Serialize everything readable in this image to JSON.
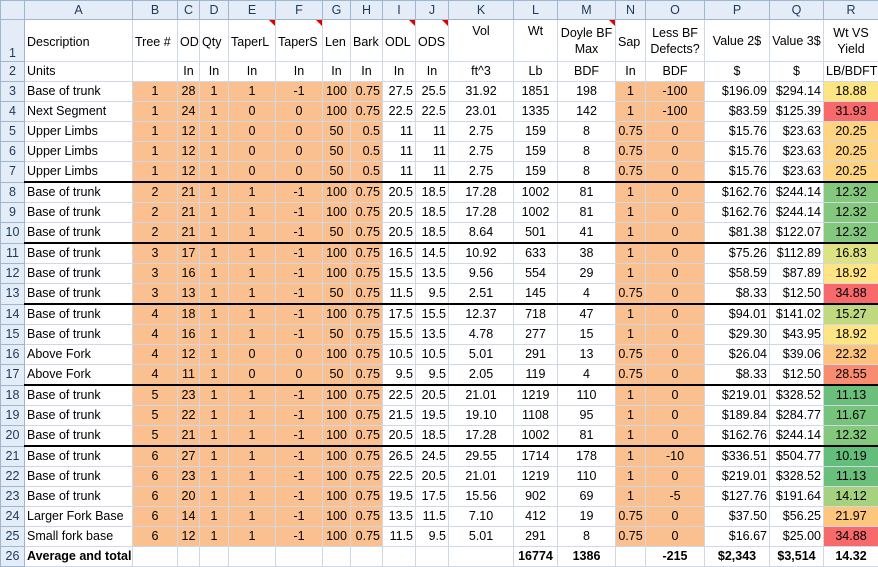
{
  "columns": [
    "",
    "A",
    "B",
    "C",
    "D",
    "E",
    "F",
    "G",
    "H",
    "I",
    "J",
    "K",
    "L",
    "M",
    "N",
    "O",
    "P",
    "Q",
    "R"
  ],
  "header1": [
    "Description",
    "Tree #",
    "OD",
    "Qty",
    "TaperL",
    "TaperS",
    "Len",
    "Bark",
    "ODL",
    "ODS",
    "Vol",
    "Wt",
    "Doyle BF Max",
    "Sap",
    "Less BF Defects?",
    "Value 2$",
    "Value 3$",
    "Wt VS Yield"
  ],
  "header2": [
    "Units",
    "",
    "In",
    "In",
    "In",
    "In",
    "In",
    "In",
    "In",
    "In",
    "ft^3",
    "Lb",
    "BDF",
    "In",
    "BDF",
    "$",
    "$",
    "LB/BDFT"
  ],
  "rows": [
    {
      "n": "3",
      "c": [
        "Base of trunk",
        "1",
        "28",
        "1",
        "1",
        "-1",
        "100",
        "0.75",
        "27.5",
        "25.5",
        "31.92",
        "1851",
        "198",
        "1",
        "-100",
        "$196.09",
        "$294.14",
        "18.88"
      ],
      "y": "#fde583"
    },
    {
      "n": "4",
      "c": [
        "Next Segment",
        "1",
        "24",
        "1",
        "0",
        "0",
        "100",
        "0.75",
        "22.5",
        "22.5",
        "23.01",
        "1335",
        "142",
        "1",
        "-100",
        "$83.59",
        "$125.39",
        "31.93"
      ],
      "y": "#f8696b"
    },
    {
      "n": "5",
      "c": [
        "Upper Limbs",
        "1",
        "12",
        "1",
        "0",
        "0",
        "50",
        "0.5",
        "11",
        "11",
        "2.75",
        "159",
        "8",
        "0.75",
        "0",
        "$15.76",
        "$23.63",
        "20.25"
      ],
      "y": "#fed480"
    },
    {
      "n": "6",
      "c": [
        "Upper Limbs",
        "1",
        "12",
        "1",
        "0",
        "0",
        "50",
        "0.5",
        "11",
        "11",
        "2.75",
        "159",
        "8",
        "0.75",
        "0",
        "$15.76",
        "$23.63",
        "20.25"
      ],
      "y": "#fed480"
    },
    {
      "n": "7",
      "c": [
        "Upper Limbs",
        "1",
        "12",
        "1",
        "0",
        "0",
        "50",
        "0.5",
        "11",
        "11",
        "2.75",
        "159",
        "8",
        "0.75",
        "0",
        "$15.76",
        "$23.63",
        "20.25"
      ],
      "y": "#fed480"
    },
    {
      "n": "8",
      "c": [
        "Base of trunk",
        "2",
        "21",
        "1",
        "1",
        "-1",
        "100",
        "0.75",
        "20.5",
        "18.5",
        "17.28",
        "1002",
        "81",
        "1",
        "0",
        "$162.76",
        "$244.14",
        "12.32"
      ],
      "y": "#84c87d"
    },
    {
      "n": "9",
      "c": [
        "Base of trunk",
        "2",
        "21",
        "1",
        "1",
        "-1",
        "100",
        "0.75",
        "20.5",
        "18.5",
        "17.28",
        "1002",
        "81",
        "1",
        "0",
        "$162.76",
        "$244.14",
        "12.32"
      ],
      "y": "#84c87d"
    },
    {
      "n": "10",
      "c": [
        "Base of trunk",
        "2",
        "21",
        "1",
        "1",
        "-1",
        "50",
        "0.75",
        "20.5",
        "18.5",
        "8.64",
        "501",
        "41",
        "1",
        "0",
        "$81.38",
        "$122.07",
        "12.32"
      ],
      "y": "#84c87d"
    },
    {
      "n": "11",
      "c": [
        "Base of trunk",
        "3",
        "17",
        "1",
        "1",
        "-1",
        "100",
        "0.75",
        "16.5",
        "14.5",
        "10.92",
        "633",
        "38",
        "1",
        "0",
        "$75.26",
        "$112.89",
        "16.83"
      ],
      "y": "#dde283"
    },
    {
      "n": "12",
      "c": [
        "Base of trunk",
        "3",
        "16",
        "1",
        "1",
        "-1",
        "100",
        "0.75",
        "15.5",
        "13.5",
        "9.56",
        "554",
        "29",
        "1",
        "0",
        "$58.59",
        "$87.89",
        "18.92"
      ],
      "y": "#fee482"
    },
    {
      "n": "13",
      "c": [
        "Base of trunk",
        "3",
        "13",
        "1",
        "1",
        "-1",
        "50",
        "0.75",
        "11.5",
        "9.5",
        "2.51",
        "145",
        "4",
        "0.75",
        "0",
        "$8.33",
        "$12.50",
        "34.88"
      ],
      "y": "#f8696b"
    },
    {
      "n": "14",
      "c": [
        "Base of trunk",
        "4",
        "18",
        "1",
        "1",
        "-1",
        "100",
        "0.75",
        "17.5",
        "15.5",
        "12.37",
        "718",
        "47",
        "1",
        "0",
        "$94.01",
        "$141.02",
        "15.27"
      ],
      "y": "#c0d980"
    },
    {
      "n": "15",
      "c": [
        "Base of trunk",
        "4",
        "16",
        "1",
        "1",
        "-1",
        "50",
        "0.75",
        "15.5",
        "13.5",
        "4.78",
        "277",
        "15",
        "1",
        "0",
        "$29.30",
        "$43.95",
        "18.92"
      ],
      "y": "#fee482"
    },
    {
      "n": "16",
      "c": [
        "Above Fork",
        "4",
        "12",
        "1",
        "0",
        "0",
        "100",
        "0.75",
        "10.5",
        "10.5",
        "5.01",
        "291",
        "13",
        "0.75",
        "0",
        "$26.04",
        "$39.06",
        "22.32"
      ],
      "y": "#fcc37c"
    },
    {
      "n": "17",
      "c": [
        "Above Fork",
        "4",
        "11",
        "1",
        "0",
        "0",
        "50",
        "0.75",
        "9.5",
        "9.5",
        "2.05",
        "119",
        "4",
        "0.75",
        "0",
        "$8.33",
        "$12.50",
        "28.55"
      ],
      "y": "#f98b71"
    },
    {
      "n": "18",
      "c": [
        "Base of trunk",
        "5",
        "23",
        "1",
        "1",
        "-1",
        "100",
        "0.75",
        "22.5",
        "20.5",
        "21.01",
        "1219",
        "110",
        "1",
        "0",
        "$219.01",
        "$328.52",
        "11.13"
      ],
      "y": "#6abf7b"
    },
    {
      "n": "19",
      "c": [
        "Base of trunk",
        "5",
        "22",
        "1",
        "1",
        "-1",
        "100",
        "0.75",
        "21.5",
        "19.5",
        "19.10",
        "1108",
        "95",
        "1",
        "0",
        "$189.84",
        "$284.77",
        "11.67"
      ],
      "y": "#76c37c"
    },
    {
      "n": "20",
      "c": [
        "Base of trunk",
        "5",
        "21",
        "1",
        "1",
        "-1",
        "100",
        "0.75",
        "20.5",
        "18.5",
        "17.28",
        "1002",
        "81",
        "1",
        "0",
        "$162.76",
        "$244.14",
        "12.32"
      ],
      "y": "#84c87d"
    },
    {
      "n": "21",
      "c": [
        "Base of trunk",
        "6",
        "27",
        "1",
        "1",
        "-1",
        "100",
        "0.75",
        "26.5",
        "24.5",
        "29.55",
        "1714",
        "178",
        "1",
        "-10",
        "$336.51",
        "$504.77",
        "10.19"
      ],
      "y": "#63be7b"
    },
    {
      "n": "22",
      "c": [
        "Base of trunk",
        "6",
        "23",
        "1",
        "1",
        "-1",
        "100",
        "0.75",
        "22.5",
        "20.5",
        "21.01",
        "1219",
        "110",
        "1",
        "0",
        "$219.01",
        "$328.52",
        "11.13"
      ],
      "y": "#6abf7b"
    },
    {
      "n": "23",
      "c": [
        "Base of trunk",
        "6",
        "20",
        "1",
        "1",
        "-1",
        "100",
        "0.75",
        "19.5",
        "17.5",
        "15.56",
        "902",
        "69",
        "1",
        "-5",
        "$127.76",
        "$191.64",
        "14.12"
      ],
      "y": "#a6d17f"
    },
    {
      "n": "24",
      "c": [
        "Larger Fork Base",
        "6",
        "14",
        "1",
        "1",
        "-1",
        "100",
        "0.75",
        "13.5",
        "11.5",
        "7.10",
        "412",
        "19",
        "0.75",
        "0",
        "$37.50",
        "$56.25",
        "21.97"
      ],
      "y": "#fcc77d"
    },
    {
      "n": "25",
      "c": [
        "Small fork base",
        "6",
        "12",
        "1",
        "1",
        "-1",
        "100",
        "0.75",
        "11.5",
        "9.5",
        "5.01",
        "291",
        "8",
        "0.75",
        "0",
        "$16.67",
        "$25.00",
        "34.88"
      ],
      "y": "#f8696b"
    }
  ],
  "totals": [
    "Average and totals",
    "",
    "",
    "",
    "",
    "",
    "",
    "",
    "",
    "",
    "",
    "16774",
    "1386",
    "",
    "-215",
    "$2,343",
    "$3,514",
    "14.32"
  ]
}
